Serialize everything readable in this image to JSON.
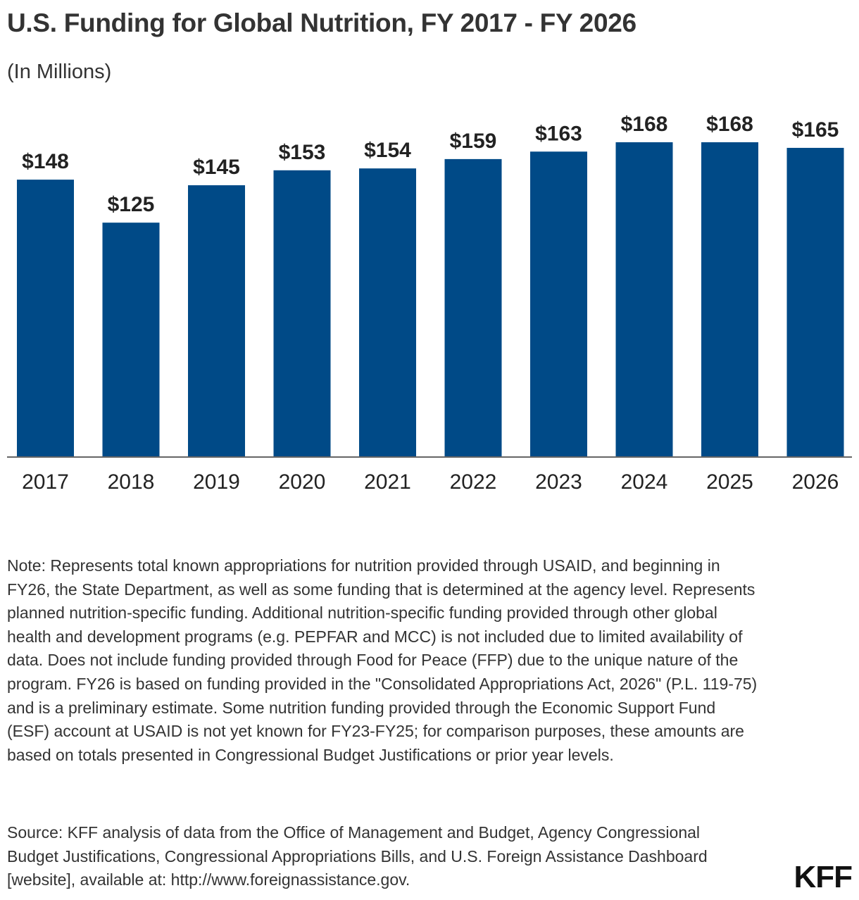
{
  "chart_data": {
    "type": "bar",
    "title": "U.S. Funding for Global Nutrition, FY 2017 - FY 2026",
    "subtitle": "(In Millions)",
    "categories": [
      "2017",
      "2018",
      "2019",
      "2020",
      "2021",
      "2022",
      "2023",
      "2024",
      "2025",
      "2026"
    ],
    "values": [
      148,
      125,
      145,
      153,
      154,
      159,
      163,
      168,
      168,
      165
    ],
    "value_labels": [
      "$148",
      "$125",
      "$145",
      "$153",
      "$154",
      "$159",
      "$163",
      "$168",
      "$168",
      "$165"
    ],
    "xlabel": "",
    "ylabel": "",
    "ylim": [
      0,
      168
    ],
    "grid": false,
    "legend": "none",
    "bar_color": "#004A87"
  },
  "note": "Note: Represents total known appropriations for nutrition provided through USAID, and beginning in FY26, the State Department, as well as some funding that is determined at the agency level. Represents planned nutrition-specific funding. Additional nutrition-specific funding provided through other global health and development programs (e.g. PEPFAR and MCC) is not included due to limited availability of data. Does not include funding provided through Food for Peace (FFP) due to the unique nature of the program. FY26 is based on funding provided in the \"Consolidated Appropriations Act, 2026\" (P.L. 119-75) and is a preliminary estimate. Some nutrition funding provided through the Economic Support Fund (ESF) account at USAID is not yet known for FY23-FY25; for comparison purposes, these amounts are based on totals presented in Congressional Budget Justifications or prior year levels.",
  "source": "Source: KFF analysis of data from the Office of Management and Budget, Agency Congressional Budget Justifications, Congressional Appropriations Bills, and U.S. Foreign Assistance Dashboard [website], available at: http://www.foreignassistance.gov.",
  "logo": {
    "text": "KFF"
  }
}
